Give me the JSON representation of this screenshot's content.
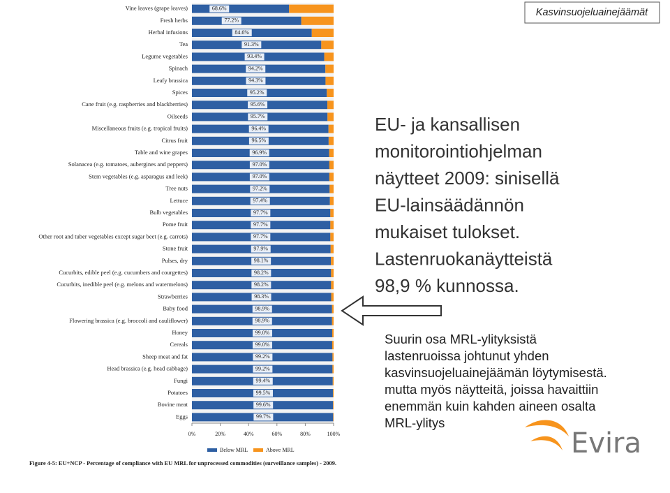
{
  "header": {
    "title": "Kasvinsuojeluainejäämät"
  },
  "main_text": [
    "EU- ja kansallisen",
    "monitorointiohjelman",
    "näytteet 2009: sinisellä",
    "EU-lainsäädännön",
    "mukaiset tulokset.",
    "Lastenruokanäytteistä",
    "98,9 % kunnossa."
  ],
  "note_text": [
    "Suurin osa MRL-ylityksistä",
    "lastenruoissa johtunut yhden",
    "kasvinsuojeluainejäämän löytymisestä.",
    "mutta myös näytteitä, joissa havaittiin",
    "enemmän kuin kahden aineen osalta",
    "MRL-ylitys"
  ],
  "logo": {
    "text": "Evira"
  },
  "chart_data": {
    "type": "stacked_barh",
    "caption": "Figure 4-5: EU+NCP - Percentage of compliance with EU MRL for unprocessed commodities (surveillance samples) - 2009.",
    "categories": [
      "Vine leaves (grape leaves)",
      "Fresh herbs",
      "Herbal infusions",
      "Tea",
      "Legume vegetables",
      "Spinach",
      "Leafy brassica",
      "Spices",
      "Cane fruit (e.g. raspberries and blackberries)",
      "Oilseeds",
      "Miscellaneous fruits (e.g. tropical fruits)",
      "Citrus fruit",
      "Table and wine grapes",
      "Solanacea (e.g. tomatoes, aubergines and peppers)",
      "Stem vegetables (e.g. asparagus and leek)",
      "Tree nuts",
      "Lettuce",
      "Bulb vegetables",
      "Pome fruit",
      "Other root and tuber vegetables except sugar beet (e.g. carrots)",
      "Stone fruit",
      "Pulses, dry",
      "Cucurbits, edible peel (e.g. cucumbers and courgettes)",
      "Cucurbits, inedible peel (e.g. melons and watermelons)",
      "Strawberries",
      "Baby food",
      "Flowering brassica (e.g. broccoli and cauliflower)",
      "Honey",
      "Cereals",
      "Sheep meat and fat",
      "Head brassica (e.g. head cabbage)",
      "Fungi",
      "Potatoes",
      "Bovine meat",
      "Eggs"
    ],
    "series": [
      {
        "name": "Below MRL",
        "color": "#2e5fa3",
        "values": [
          68.6,
          77.2,
          84.6,
          91.3,
          93.4,
          94.2,
          94.3,
          95.2,
          95.6,
          95.7,
          96.4,
          96.5,
          96.9,
          97.0,
          97.0,
          97.2,
          97.4,
          97.7,
          97.7,
          97.7,
          97.9,
          98.1,
          98.2,
          98.2,
          98.3,
          98.9,
          98.9,
          99.0,
          99.0,
          99.2,
          99.2,
          99.4,
          99.5,
          99.6,
          99.7
        ],
        "value_labels": [
          "68.6%",
          "77.2%",
          "84.6%",
          "91.3%",
          "93.4%",
          "94.2%",
          "94.3%",
          "95.2%",
          "95.6%",
          "95.7%",
          "96.4%",
          "96.5%",
          "96.9%",
          "97.0%",
          "97.0%",
          "97.2%",
          "97.4%",
          "97.7%",
          "97.7%",
          "97.7%",
          "97.9%",
          "98.1%",
          "98.2%",
          "98.2%",
          "98.3%",
          "98.9%",
          "98.9%",
          "99.0%",
          "99.0%",
          "99.2%",
          "99.2%",
          "99.4%",
          "99.5%",
          "99.6%",
          "99.7%"
        ]
      },
      {
        "name": "Above MRL",
        "color": "#f7941d",
        "values": [
          31.4,
          22.8,
          15.4,
          8.7,
          6.6,
          5.8,
          5.7,
          4.8,
          4.4,
          4.3,
          3.6,
          3.5,
          3.1,
          3.0,
          3.0,
          2.8,
          2.6,
          2.3,
          2.3,
          2.3,
          2.1,
          1.9,
          1.8,
          1.8,
          1.7,
          1.1,
          1.1,
          1.0,
          1.0,
          0.8,
          0.8,
          0.6,
          0.5,
          0.4,
          0.3
        ]
      }
    ],
    "xlim": [
      0,
      100
    ],
    "xticks": [
      {
        "value": 0,
        "label": "0%"
      },
      {
        "value": 20,
        "label": "20%"
      },
      {
        "value": 40,
        "label": "40%"
      },
      {
        "value": 60,
        "label": "60%"
      },
      {
        "value": 80,
        "label": "80%"
      },
      {
        "value": 100,
        "label": "100%"
      }
    ]
  }
}
